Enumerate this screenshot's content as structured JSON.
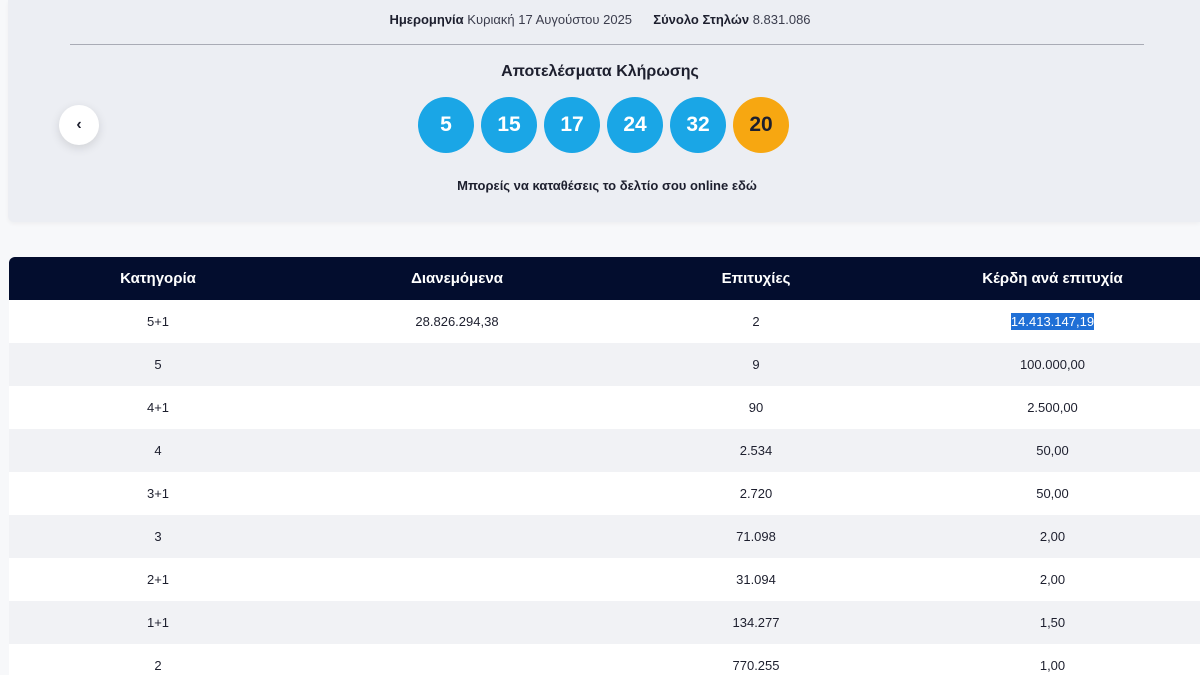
{
  "header": {
    "date_label": "Ημερομηνία",
    "date_value": "Κυριακή 17 Αυγούστου 2025",
    "columns_label": "Σύνολο Στηλών",
    "columns_value": "8.831.086"
  },
  "draw": {
    "title": "Αποτελέσματα Κλήρωσης",
    "numbers": [
      "5",
      "15",
      "17",
      "24",
      "32"
    ],
    "joker": "20",
    "online_text": "Μπορείς να καταθέσεις το δελτίο σου online εδώ",
    "prev_label": "‹"
  },
  "colors": {
    "ball": "#1aa6e6",
    "joker": "#f7a711",
    "table_header": "#030d2e",
    "selection": "#1f6fd6"
  },
  "table": {
    "headers": [
      "Κατηγορία",
      "Διανεμόμενα",
      "Επιτυχίες",
      "Κέρδη ανά επιτυχία"
    ],
    "rows": [
      {
        "category": "5+1",
        "distributed": "28.826.294,38",
        "winners": "2",
        "prize": "14.413.147,19",
        "prize_selected": true
      },
      {
        "category": "5",
        "distributed": "",
        "winners": "9",
        "prize": "100.000,00"
      },
      {
        "category": "4+1",
        "distributed": "",
        "winners": "90",
        "prize": "2.500,00"
      },
      {
        "category": "4",
        "distributed": "",
        "winners": "2.534",
        "prize": "50,00"
      },
      {
        "category": "3+1",
        "distributed": "",
        "winners": "2.720",
        "prize": "50,00"
      },
      {
        "category": "3",
        "distributed": "",
        "winners": "71.098",
        "prize": "2,00"
      },
      {
        "category": "2+1",
        "distributed": "",
        "winners": "31.094",
        "prize": "2,00"
      },
      {
        "category": "1+1",
        "distributed": "",
        "winners": "134.277",
        "prize": "1,50"
      },
      {
        "category": "2",
        "distributed": "",
        "winners": "770.255",
        "prize": "1,00"
      }
    ]
  }
}
